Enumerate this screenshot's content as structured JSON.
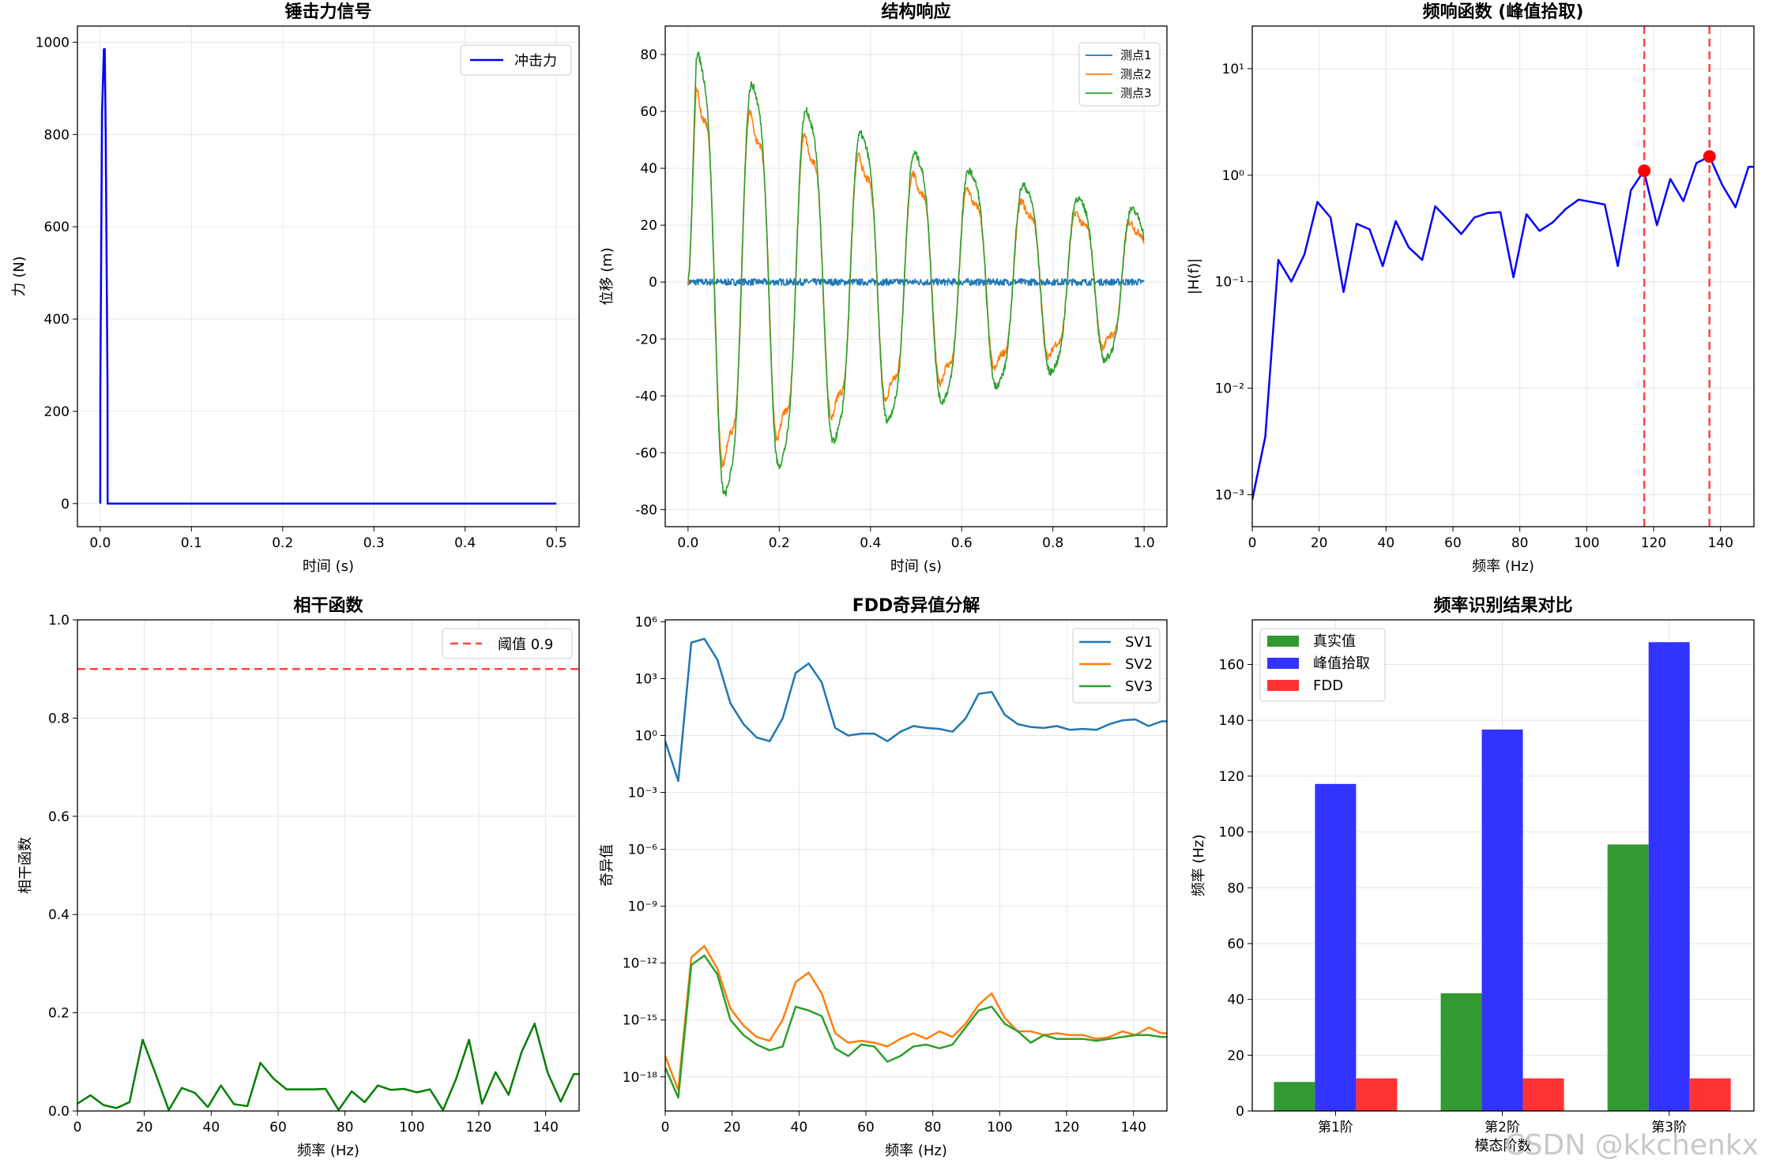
{
  "watermark": "CSDN @kkchenkx",
  "colors": {
    "blue": "#0000ff",
    "c1": "#1f77b4",
    "c2": "#ff7f0e",
    "c3": "#2ca02c",
    "red": "#ff0000",
    "redDash": "#ff4444",
    "green": "#008000",
    "barGreen": "#339933",
    "barBlue": "#3333ff",
    "barRed": "#ff3333",
    "grid": "#e6e6e6"
  },
  "chart_data": [
    {
      "id": "hammer",
      "type": "line",
      "title": "锤击力信号",
      "xlabel": "时间 (s)",
      "ylabel": "力 (N)",
      "xlim": [
        -0.025,
        0.525
      ],
      "ylim": [
        -50,
        1035
      ],
      "xticks": [
        0.0,
        0.1,
        0.2,
        0.3,
        0.4,
        0.5
      ],
      "xtick_labels": [
        "0.0",
        "0.1",
        "0.2",
        "0.3",
        "0.4",
        "0.5"
      ],
      "yticks": [
        0,
        200,
        400,
        600,
        800,
        1000
      ],
      "ytick_labels": [
        "0",
        "200",
        "400",
        "600",
        "800",
        "1000"
      ],
      "legend": [
        "冲击力"
      ],
      "series": [
        {
          "name": "冲击力",
          "color": "#0000ff",
          "x": [
            0.0,
            0.0001,
            0.002,
            0.004,
            0.005,
            0.006,
            0.008,
            0.0081,
            0.5
          ],
          "y": [
            0,
            250,
            850,
            985,
            985,
            800,
            250,
            0,
            0
          ]
        }
      ]
    },
    {
      "id": "response",
      "type": "line",
      "title": "结构响应",
      "xlabel": "时间 (s)",
      "ylabel": "位移 (m)",
      "xlim": [
        -0.05,
        1.05
      ],
      "ylim": [
        -86,
        90
      ],
      "xticks": [
        0.0,
        0.2,
        0.4,
        0.6,
        0.8,
        1.0
      ],
      "xtick_labels": [
        "0.0",
        "0.2",
        "0.4",
        "0.6",
        "0.8",
        "1.0"
      ],
      "yticks": [
        -80,
        -60,
        -40,
        -20,
        0,
        20,
        40,
        60,
        80
      ],
      "ytick_labels": [
        "-80",
        "-60",
        "-40",
        "-20",
        "0",
        "20",
        "40",
        "60",
        "80"
      ],
      "legend": [
        "测点1",
        "测点2",
        "测点3"
      ],
      "series": [
        {
          "name": "测点1",
          "color": "#1f77b4",
          "model": "noise",
          "amp": 1.2
        },
        {
          "name": "测点2",
          "color": "#ff7f0e",
          "model": "decay",
          "amp": 75,
          "freq": 8.4,
          "decay": 1.25,
          "harm": 0.18
        },
        {
          "name": "测点3",
          "color": "#2ca02c",
          "model": "decay",
          "amp": 88,
          "freq": 8.4,
          "decay": 1.2,
          "harm": 0.1
        }
      ]
    },
    {
      "id": "frf",
      "type": "line",
      "title": "频响函数 (峰值拾取)",
      "xlabel": "频率 (Hz)",
      "ylabel": "|H(f)|",
      "yscale": "log",
      "xlim": [
        0,
        150
      ],
      "ylim_log10": [
        -3.3,
        1.4
      ],
      "xticks": [
        0,
        20,
        40,
        60,
        80,
        100,
        120,
        140
      ],
      "xtick_labels": [
        "0",
        "20",
        "40",
        "60",
        "80",
        "100",
        "120",
        "140"
      ],
      "ytick_exps": [
        1,
        0,
        -1,
        -2,
        -3
      ],
      "ytick_labels": [
        "10¹",
        "10⁰",
        "10⁻¹",
        "10⁻²",
        "10⁻³"
      ],
      "x": [
        0,
        3.9,
        7.8,
        11.7,
        15.6,
        19.5,
        23.4,
        27.3,
        31.2,
        35.1,
        39.0,
        42.9,
        46.8,
        50.8,
        54.7,
        58.6,
        62.5,
        66.4,
        70.3,
        74.2,
        78.1,
        82.0,
        85.9,
        89.8,
        93.7,
        97.6,
        101.5,
        105.4,
        109.3,
        113.2,
        117.1,
        121.0,
        125.0,
        128.9,
        132.8,
        136.7,
        140.6,
        144.5,
        148.4,
        150
      ],
      "y": [
        0.0009,
        0.0035,
        0.16,
        0.1,
        0.18,
        0.56,
        0.4,
        0.08,
        0.35,
        0.31,
        0.14,
        0.37,
        0.21,
        0.16,
        0.51,
        0.38,
        0.28,
        0.4,
        0.44,
        0.45,
        0.11,
        0.43,
        0.3,
        0.36,
        0.48,
        0.59,
        0.56,
        0.53,
        0.14,
        0.72,
        1.1,
        0.34,
        0.92,
        0.57,
        1.3,
        1.5,
        0.8,
        0.5,
        1.2,
        1.2
      ],
      "peaks": [
        {
          "x": 117.2,
          "y": 1.1
        },
        {
          "x": 136.7,
          "y": 1.5
        }
      ]
    },
    {
      "id": "coherence",
      "type": "line",
      "title": "相干函数",
      "xlabel": "频率 (Hz)",
      "ylabel": "相干函数",
      "xlim": [
        0,
        150
      ],
      "ylim": [
        0,
        1.0
      ],
      "xticks": [
        0,
        20,
        40,
        60,
        80,
        100,
        120,
        140
      ],
      "xtick_labels": [
        "0",
        "20",
        "40",
        "60",
        "80",
        "100",
        "120",
        "140"
      ],
      "yticks": [
        0.0,
        0.2,
        0.4,
        0.6,
        0.8,
        1.0
      ],
      "ytick_labels": [
        "0.0",
        "0.2",
        "0.4",
        "0.6",
        "0.8",
        "1.0"
      ],
      "threshold": 0.9,
      "legend": [
        "阈值 0.9"
      ],
      "x": [
        0,
        3.9,
        7.8,
        11.7,
        15.6,
        19.5,
        23.4,
        27.3,
        31.2,
        35.1,
        39.0,
        42.9,
        46.8,
        50.8,
        54.7,
        58.6,
        62.5,
        66.4,
        70.3,
        74.2,
        78.1,
        82.0,
        85.9,
        89.8,
        93.7,
        97.6,
        101.5,
        105.4,
        109.3,
        113.2,
        117.1,
        121.0,
        125.0,
        128.9,
        132.8,
        136.7,
        140.6,
        144.5,
        148.4,
        150
      ],
      "y": [
        0.015,
        0.032,
        0.012,
        0.006,
        0.018,
        0.145,
        0.075,
        0.002,
        0.047,
        0.037,
        0.008,
        0.052,
        0.014,
        0.01,
        0.098,
        0.066,
        0.044,
        0.044,
        0.044,
        0.045,
        0.002,
        0.04,
        0.018,
        0.052,
        0.043,
        0.045,
        0.038,
        0.044,
        0.002,
        0.065,
        0.145,
        0.015,
        0.079,
        0.033,
        0.12,
        0.178,
        0.078,
        0.019,
        0.075,
        0.075
      ]
    },
    {
      "id": "fdd",
      "type": "line",
      "title": "FDD奇异值分解",
      "xlabel": "频率 (Hz)",
      "ylabel": "奇异值",
      "yscale": "log",
      "xlim": [
        0,
        150
      ],
      "ylim_log10": [
        -19.8,
        6.1
      ],
      "xticks": [
        0,
        20,
        40,
        60,
        80,
        100,
        120,
        140
      ],
      "xtick_labels": [
        "0",
        "20",
        "40",
        "60",
        "80",
        "100",
        "120",
        "140"
      ],
      "ytick_exps": [
        6,
        3,
        0,
        -3,
        -6,
        -9,
        -12,
        -15,
        -18
      ],
      "ytick_labels": [
        "10⁶",
        "10³",
        "10⁰",
        "10⁻³",
        "10⁻⁶",
        "10⁻⁹",
        "10⁻¹²",
        "10⁻¹⁵",
        "10⁻¹⁸"
      ],
      "legend": [
        "SV1",
        "SV2",
        "SV3"
      ],
      "x": [
        0,
        3.9,
        7.8,
        11.7,
        15.6,
        19.5,
        23.4,
        27.3,
        31.2,
        35.1,
        39.0,
        42.9,
        46.8,
        50.8,
        54.7,
        58.6,
        62.5,
        66.4,
        70.3,
        74.2,
        78.1,
        82.0,
        85.9,
        89.8,
        93.7,
        97.6,
        101.5,
        105.4,
        109.3,
        113.2,
        117.1,
        121.0,
        125.0,
        128.9,
        132.8,
        136.7,
        140.6,
        144.5,
        148.4,
        150
      ],
      "series": [
        {
          "name": "SV1",
          "color": "#1f77b4",
          "log10": [
            -0.3,
            -2.4,
            4.9,
            5.1,
            4.0,
            1.7,
            0.6,
            -0.1,
            -0.3,
            0.9,
            3.3,
            3.8,
            2.8,
            0.4,
            0.0,
            0.1,
            0.1,
            -0.3,
            0.2,
            0.5,
            0.4,
            0.35,
            0.2,
            0.9,
            2.2,
            2.3,
            1.1,
            0.6,
            0.45,
            0.4,
            0.5,
            0.3,
            0.35,
            0.3,
            0.6,
            0.8,
            0.85,
            0.5,
            0.75,
            0.75
          ]
        },
        {
          "name": "SV2",
          "color": "#ff7f0e",
          "log10": [
            -16.9,
            -18.7,
            -11.7,
            -11.1,
            -12.3,
            -14.4,
            -15.3,
            -15.9,
            -16.1,
            -15.0,
            -13.0,
            -12.5,
            -13.6,
            -15.7,
            -16.2,
            -16.1,
            -16.2,
            -16.4,
            -16.0,
            -15.7,
            -16.0,
            -15.6,
            -15.9,
            -15.2,
            -14.2,
            -13.6,
            -14.9,
            -15.6,
            -15.6,
            -15.8,
            -15.7,
            -15.8,
            -15.8,
            -16.0,
            -15.9,
            -15.6,
            -15.8,
            -15.4,
            -15.7,
            -15.7
          ]
        },
        {
          "name": "SV3",
          "color": "#2ca02c",
          "log10": [
            -17.5,
            -19.1,
            -12.1,
            -11.6,
            -12.6,
            -15.0,
            -15.8,
            -16.3,
            -16.6,
            -16.4,
            -14.3,
            -14.5,
            -14.8,
            -16.5,
            -16.9,
            -16.3,
            -16.4,
            -17.2,
            -16.9,
            -16.4,
            -16.3,
            -16.5,
            -16.3,
            -15.4,
            -14.5,
            -14.3,
            -15.2,
            -15.6,
            -16.2,
            -15.8,
            -16.0,
            -16.0,
            -16.0,
            -16.1,
            -16.0,
            -15.9,
            -15.8,
            -15.8,
            -15.9,
            -15.9
          ]
        }
      ]
    },
    {
      "id": "compare",
      "type": "bar",
      "title": "频率识别结果对比",
      "xlabel": "模态阶数",
      "ylabel": "频率 (Hz)",
      "ylim": [
        0,
        176
      ],
      "yticks": [
        0,
        20,
        40,
        60,
        80,
        100,
        120,
        140,
        160
      ],
      "ytick_labels": [
        "0",
        "20",
        "40",
        "60",
        "80",
        "100",
        "120",
        "140",
        "160"
      ],
      "categories": [
        "第1阶",
        "第2阶",
        "第3阶"
      ],
      "legend": [
        "真实值",
        "峰值拾取",
        "FDD"
      ],
      "series": [
        {
          "name": "真实值",
          "color": "#339933",
          "values": [
            10.4,
            42.2,
            95.5
          ]
        },
        {
          "name": "峰值拾取",
          "color": "#3333ff",
          "values": [
            117.2,
            136.7,
            168.0
          ]
        },
        {
          "name": "FDD",
          "color": "#ff3333",
          "values": [
            11.7,
            11.7,
            11.7
          ]
        }
      ]
    }
  ]
}
